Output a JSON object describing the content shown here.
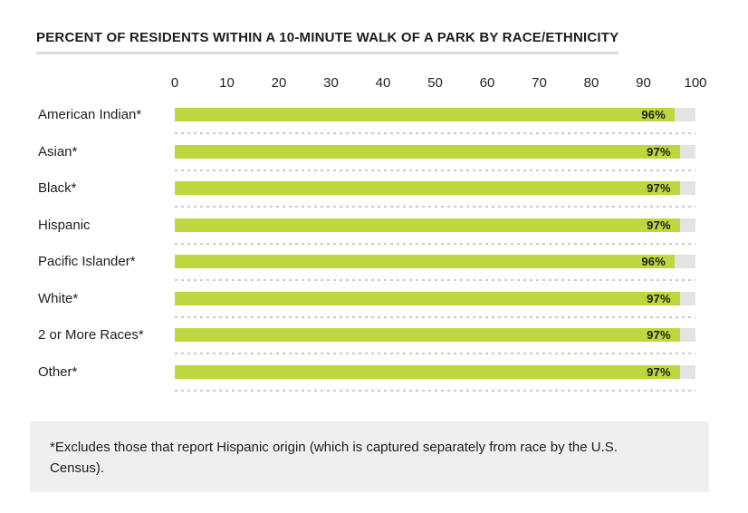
{
  "header": {
    "title": "PERCENT OF RESIDENTS WITHIN A 10-MINUTE WALK OF A PARK BY RACE/ETHNICITY"
  },
  "chart_data": {
    "type": "bar",
    "orientation": "horizontal",
    "title": "PERCENT OF RESIDENTS WITHIN A 10-MINUTE WALK OF A PARK BY RACE/ETHNICITY",
    "categories": [
      "American Indian*",
      "Asian*",
      "Black*",
      "Hispanic",
      "Pacific Islander*",
      "White*",
      "2 or More Races*",
      "Other*"
    ],
    "values": [
      96,
      97,
      97,
      97,
      96,
      97,
      97,
      97
    ],
    "value_labels": [
      "96%",
      "97%",
      "97%",
      "97%",
      "96%",
      "97%",
      "97%",
      "97%"
    ],
    "xlabel": "",
    "ylabel": "",
    "xlim": [
      0,
      100
    ],
    "x_ticks": [
      0,
      10,
      20,
      30,
      40,
      50,
      60,
      70,
      80,
      90,
      100
    ],
    "grid": "dotted row separators only, no vertical gridlines",
    "legend": "none",
    "bar_color": "#c0d640",
    "track_color": "#e3e3e3",
    "separator_color": "#c9c9c9"
  },
  "footnote": {
    "text": "*Excludes those that report Hispanic origin (which is captured separately from race by the U.S. Census)."
  }
}
